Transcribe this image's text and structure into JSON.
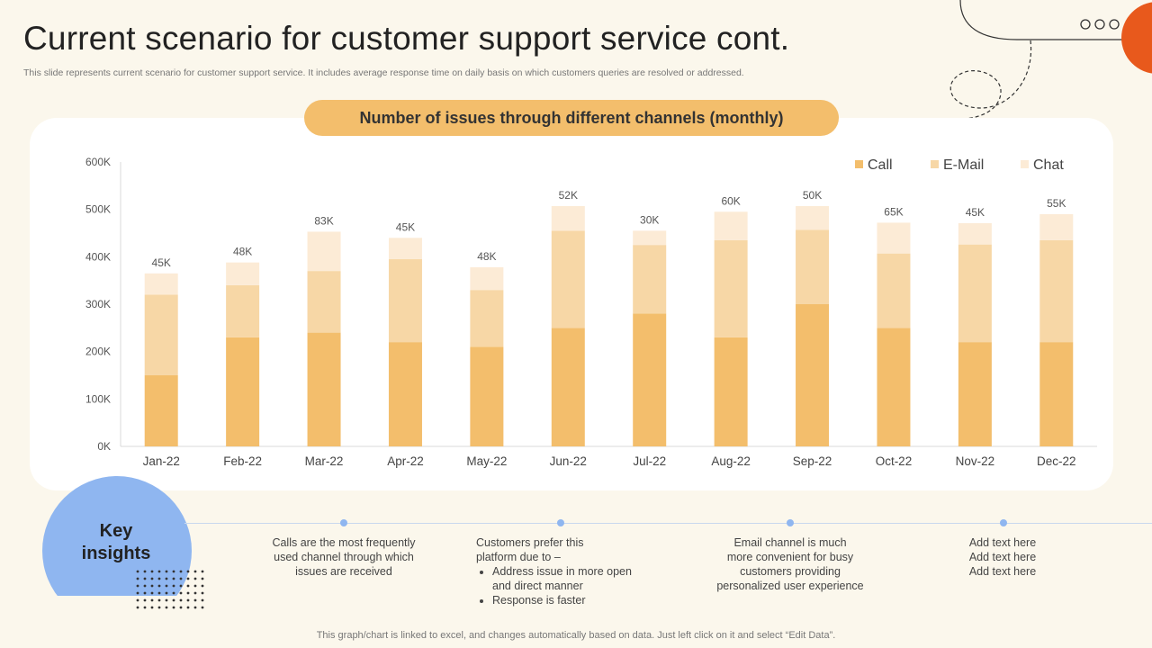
{
  "header": {
    "title": "Current scenario for customer support service cont.",
    "subtitle": "This slide represents current scenario for customer support service. It includes average response time on daily basis on which customers queries are resolved or addressed."
  },
  "chart_heading": "Number of issues through different channels (monthly)",
  "chart_data": {
    "type": "bar",
    "stacked": true,
    "title": "Number of issues through different channels (monthly)",
    "categories": [
      "Jan-22",
      "Feb-22",
      "Mar-22",
      "Apr-22",
      "May-22",
      "Jun-22",
      "Jul-22",
      "Aug-22",
      "Sep-22",
      "Oct-22",
      "Nov-22",
      "Dec-22"
    ],
    "series": [
      {
        "name": "Call",
        "color": "#F3BE6C",
        "values": [
          150000,
          230000,
          240000,
          220000,
          210000,
          250000,
          280000,
          230000,
          300000,
          250000,
          220000,
          220000
        ]
      },
      {
        "name": "E-Mail",
        "color": "#F7D7A6",
        "values": [
          170000,
          110000,
          130000,
          175000,
          120000,
          205000,
          145000,
          205000,
          157000,
          157000,
          206000,
          215000
        ]
      },
      {
        "name": "Chat",
        "color": "#FCEBD6",
        "values": [
          45000,
          48000,
          83000,
          45000,
          48000,
          52000,
          30000,
          60000,
          50000,
          65000,
          45000,
          55000
        ]
      }
    ],
    "data_labels": [
      "45K",
      "48K",
      "83K",
      "45K",
      "48K",
      "52K",
      "30K",
      "60K",
      "50K",
      "65K",
      "45K",
      "55K"
    ],
    "y_ticks": [
      "0K",
      "100K",
      "200K",
      "300K",
      "400K",
      "500K",
      "600K"
    ],
    "ylim": [
      0,
      600000
    ],
    "xlabel": "",
    "ylabel": "",
    "legend_position": "top-right",
    "grid": false
  },
  "key_insights": {
    "title_line1": "Key",
    "title_line2": "insights",
    "items": [
      {
        "lines": [
          "Calls are the most frequently",
          "used channel through which",
          "issues are received"
        ]
      },
      {
        "intro": [
          "Customers prefer this",
          "platform due to –"
        ],
        "bullets": [
          "Address issue in more open and direct manner",
          "Response is faster"
        ]
      },
      {
        "lines": [
          "Email channel is much",
          "more convenient  for busy",
          "customers  providing",
          "personalized  user experience"
        ]
      },
      {
        "lines": [
          "Add text here",
          "Add text here",
          "Add text here"
        ]
      }
    ]
  },
  "footer": "This graph/chart is linked to excel,  and changes automatically based on data. Just left click on it and select “Edit Data”.",
  "colors": {
    "accent_orange": "#E8591C",
    "blue": "#8FB6F0",
    "pill": "#F3BE6C"
  }
}
